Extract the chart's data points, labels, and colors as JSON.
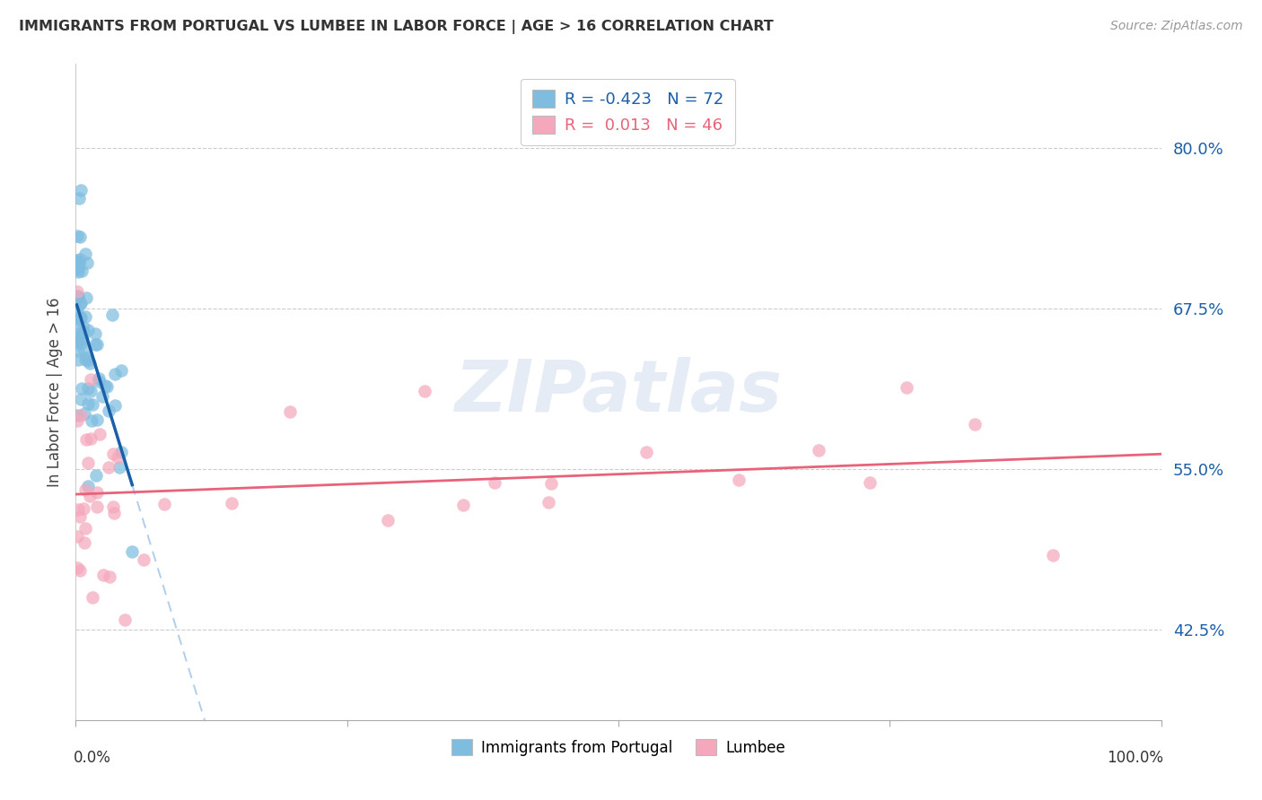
{
  "title": "IMMIGRANTS FROM PORTUGAL VS LUMBEE IN LABOR FORCE | AGE > 16 CORRELATION CHART",
  "source": "Source: ZipAtlas.com",
  "ylabel": "In Labor Force | Age > 16",
  "yticks": [
    0.425,
    0.55,
    0.675,
    0.8
  ],
  "ytick_labels": [
    "42.5%",
    "55.0%",
    "67.5%",
    "80.0%"
  ],
  "xlim": [
    0.0,
    1.0
  ],
  "ylim": [
    0.355,
    0.865
  ],
  "blue_R": "-0.423",
  "blue_N": "72",
  "pink_R": "0.013",
  "pink_N": "46",
  "blue_scatter_color": "#7fbde0",
  "pink_scatter_color": "#f5a8bc",
  "blue_line_color": "#1a5fa8",
  "pink_line_color": "#e8637a",
  "blue_dash_color": "#a8c8e8",
  "watermark": "ZIPatlas",
  "legend_blue_text_color": "#1a5fa8",
  "legend_pink_text_color": "#e8637a",
  "ytick_color": "#1a5fa8",
  "title_color": "#333333",
  "source_color": "#999999",
  "blue_seed": 42,
  "pink_seed": 77
}
